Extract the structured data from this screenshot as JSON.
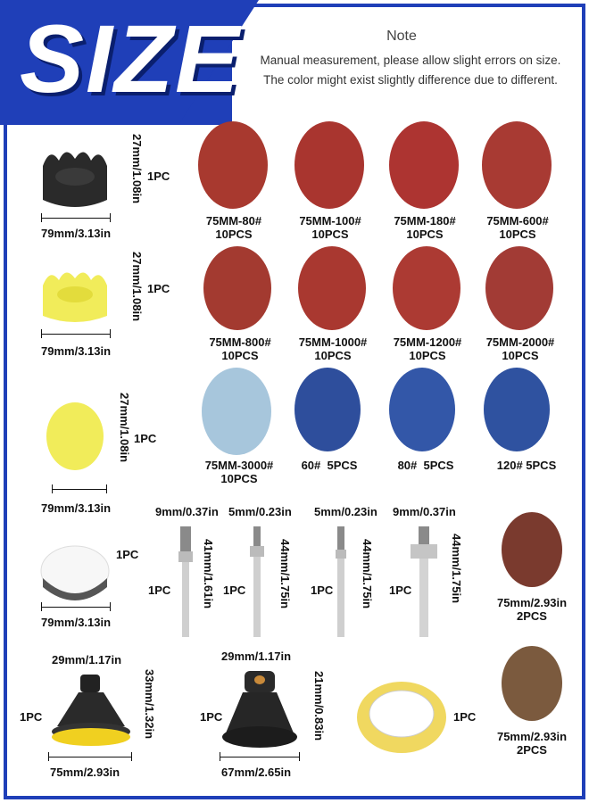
{
  "banner": {
    "title": "SIZE"
  },
  "note": {
    "title": "Note",
    "line1": "Manual measurement, please allow slight errors on size.",
    "line2": "The color might exist slightly difference due to different."
  },
  "colors": {
    "accent": "#1f3fb8",
    "sandpaper_red": "#a8392f",
    "sandpaper_blue": "#2f4fa0",
    "light_blue": "#a7c6dc"
  },
  "pads": [
    {
      "height": "27mm/1.08in",
      "width": "79mm/3.13in",
      "qty": "1PC"
    },
    {
      "height": "27mm/1.08in",
      "width": "79mm/3.13in",
      "qty": "1PC"
    },
    {
      "height": "27mm/1.08in",
      "width": "79mm/3.13in",
      "qty": "1PC"
    },
    {
      "width": "79mm/3.13in",
      "qty": "1PC"
    }
  ],
  "discs": [
    {
      "grit": "75MM-80#",
      "qty": "10PCS"
    },
    {
      "grit": "75MM-100#",
      "qty": "10PCS"
    },
    {
      "grit": "75MM-180#",
      "qty": "10PCS"
    },
    {
      "grit": "75MM-600#",
      "qty": "10PCS"
    },
    {
      "grit": "75MM-800#",
      "qty": "10PCS"
    },
    {
      "grit": "75MM-1000#",
      "qty": "10PCS"
    },
    {
      "grit": "75MM-1200#",
      "qty": "10PCS"
    },
    {
      "grit": "75MM-2000#",
      "qty": "10PCS"
    },
    {
      "grit": "75MM-3000#",
      "qty": "10PCS"
    },
    {
      "grit": "60#  5PCS"
    },
    {
      "grit": "80#  5PCS"
    },
    {
      "grit": "120# 5PCS"
    }
  ],
  "shafts": [
    {
      "dia": "9mm/0.37in",
      "len": "41mm/1.61in",
      "qty": "1PC"
    },
    {
      "dia": "5mm/0.23in",
      "len": "44mm/1.75in",
      "qty": "1PC"
    },
    {
      "dia": "5mm/0.23in",
      "len": "44mm/1.75in",
      "qty": "1PC"
    },
    {
      "dia": "9mm/0.37in",
      "len": "44mm/1.75in",
      "qty": "1PC"
    }
  ],
  "scuff": [
    {
      "size": "75mm/2.93in",
      "qty": "2PCS"
    },
    {
      "size": "75mm/2.93in",
      "qty": "2PCS"
    }
  ],
  "holders": [
    {
      "top": "29mm/1.17in",
      "height": "33mm/1.32in",
      "width": "75mm/2.93in",
      "qty": "1PC"
    },
    {
      "top": "29mm/1.17in",
      "height": "21mm/0.83in",
      "width": "67mm/2.65in",
      "qty": "1PC"
    }
  ],
  "tape": {
    "qty": "1PC"
  }
}
